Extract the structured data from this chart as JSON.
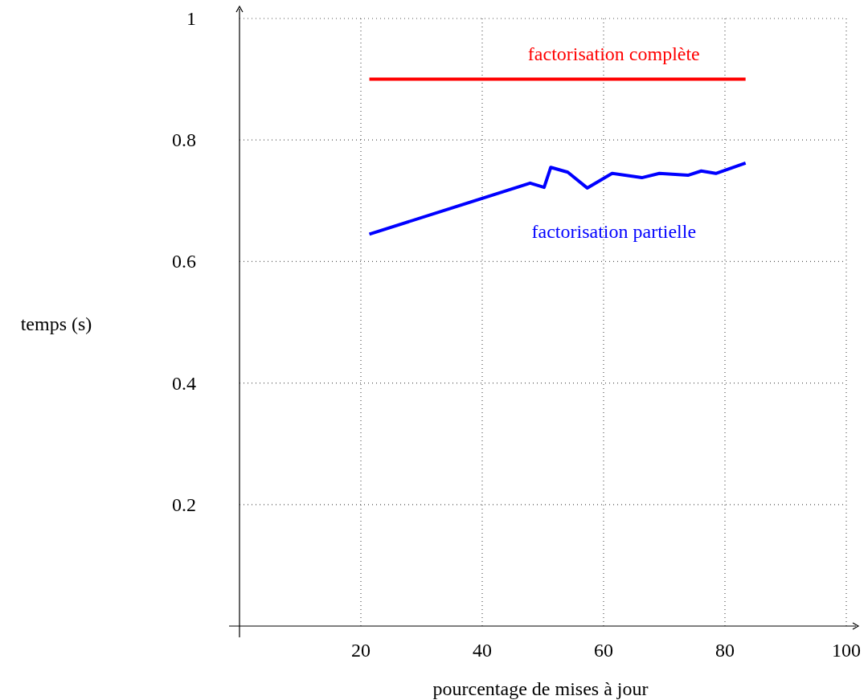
{
  "chart_data": {
    "type": "line",
    "xlabel": "pourcentage de mises à jour",
    "ylabel": "temps (s)",
    "xlim": [
      0,
      100
    ],
    "ylim": [
      0,
      1
    ],
    "xticks": [
      20,
      40,
      60,
      80,
      100
    ],
    "yticks": [
      0.2,
      0.4,
      0.6,
      0.8,
      1
    ],
    "grid": true,
    "legend": false,
    "line_style": "solid",
    "marker": "none",
    "series": [
      {
        "name": "factorisation complète",
        "color": "#ff0000",
        "x": [
          21.4,
          83.4
        ],
        "values": [
          0.9,
          0.9
        ]
      },
      {
        "name": "factorisation partielle",
        "color": "#0000ff",
        "x": [
          21.4,
          47.9,
          50.2,
          51.3,
          54.1,
          57.3,
          61.4,
          66.3,
          69.2,
          73.9,
          76.1,
          78.5,
          83.4
        ],
        "values": [
          0.645,
          0.729,
          0.722,
          0.755,
          0.747,
          0.721,
          0.745,
          0.738,
          0.745,
          0.742,
          0.749,
          0.745,
          0.762
        ]
      }
    ]
  }
}
